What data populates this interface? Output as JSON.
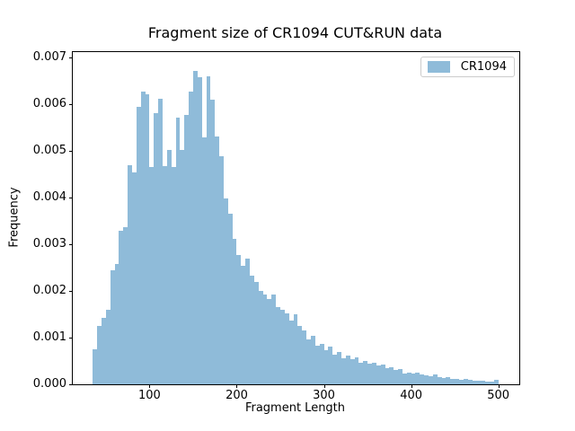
{
  "title": "Fragment size of CR1094 CUT&RUN data",
  "legend": {
    "label": "CR1094",
    "patch_color": "#8fbbd9"
  },
  "chart_data": {
    "type": "bar",
    "subtype": "histogram",
    "title": "Fragment size of CR1094 CUT&RUN data",
    "xlabel": "Fragment Length",
    "ylabel": "Frequency",
    "legend_entries": [
      "CR1094"
    ],
    "legend_position": "upper right",
    "grid": false,
    "bar_color": "#8fbbd9",
    "bin_start": 35,
    "bin_width": 5,
    "xlim": [
      12,
      524
    ],
    "ylim": [
      0,
      0.00712
    ],
    "xticks": [
      100,
      200,
      300,
      400,
      500
    ],
    "ytick_labels": [
      "0.000",
      "0.001",
      "0.002",
      "0.003",
      "0.004",
      "0.005",
      "0.006",
      "0.007"
    ],
    "frequencies": [
      0.00075,
      0.00125,
      0.00142,
      0.0016,
      0.00245,
      0.00258,
      0.0033,
      0.00336,
      0.0047,
      0.00455,
      0.00595,
      0.00628,
      0.00622,
      0.00465,
      0.00582,
      0.00612,
      0.00468,
      0.00502,
      0.00466,
      0.00572,
      0.00502,
      0.00578,
      0.00628,
      0.00672,
      0.00658,
      0.0053,
      0.0066,
      0.0061,
      0.00532,
      0.00488,
      0.00398,
      0.00366,
      0.00312,
      0.00278,
      0.00255,
      0.0027,
      0.00232,
      0.0022,
      0.002,
      0.00192,
      0.00182,
      0.00192,
      0.00166,
      0.0016,
      0.00152,
      0.00136,
      0.0015,
      0.00126,
      0.00115,
      0.00096,
      0.00104,
      0.00082,
      0.00086,
      0.00074,
      0.0008,
      0.00064,
      0.0007,
      0.00056,
      0.00062,
      0.00053,
      0.00058,
      0.00047,
      0.00051,
      0.00044,
      0.00046,
      0.00041,
      0.00042,
      0.00034,
      0.00036,
      0.00031,
      0.00033,
      0.00024,
      0.00026,
      0.00023,
      0.00026,
      0.00022,
      0.00019,
      0.00017,
      0.00021,
      0.00015,
      0.00014,
      0.00016,
      0.00012,
      0.00011,
      0.0001,
      0.00012,
      9e-05,
      8e-05,
      8e-05,
      7e-05,
      6e-05,
      5e-05,
      0.0001
    ]
  }
}
